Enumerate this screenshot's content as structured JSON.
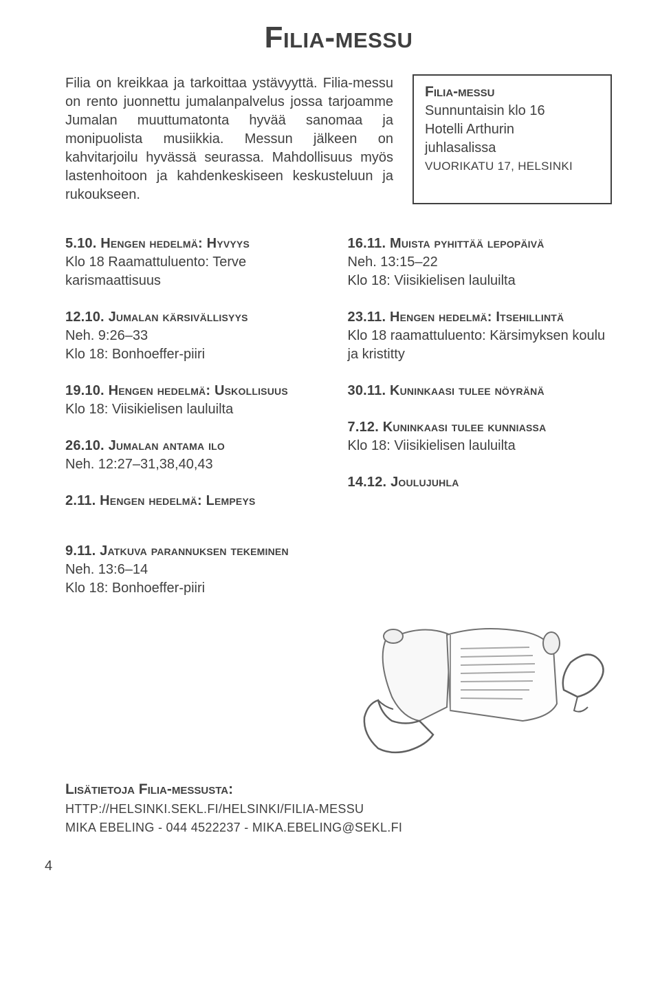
{
  "title": "Filia-messu",
  "intro": "Filia on kreikkaa ja tarkoittaa ystävyyttä. Filia-messu on rento juonnettu jumalanpalvelus jossa tarjoamme Jumalan muuttumatonta hyvää sanomaa ja monipuolista musiikkia. Messun jälkeen on kahvitarjoilu hyvässä seurassa. Mahdollisuus myös lastenhoitoon ja kahdenkeskiseen keskusteluun ja rukoukseen.",
  "infobox": {
    "title": "Filia-messu",
    "line1": "Sunnuntaisin klo 16",
    "line2": "Hotelli Arthurin",
    "line3": "juhlasalissa",
    "addr": "VUORIKATU 17, HELSINKI"
  },
  "left": [
    {
      "date": "5.10.",
      "head": "Hengen hedelmä: Hyvyys",
      "body": "Klo 18 Raamattuluento: Terve karismaattisuus"
    },
    {
      "date": "12.10.",
      "head": "Jumalan kärsivällisyys",
      "body": "Neh. 9:26–33\nKlo 18: Bonhoeffer-piiri"
    },
    {
      "date": "19.10.",
      "head": "Hengen hedelmä: Uskollisuus",
      "body": "Klo 18: Viisikielisen lauluilta"
    },
    {
      "date": "26.10.",
      "head": "Jumalan antama ilo",
      "body": "Neh. 12:27–31,38,40,43"
    },
    {
      "date": "2.11.",
      "head": "Hengen hedelmä: Lempeys",
      "body": ""
    }
  ],
  "right": [
    {
      "date": "16.11.",
      "head": "Muista pyhittää lepopäivä",
      "body": "Neh. 13:15–22\nKlo 18: Viisikielisen lauluilta"
    },
    {
      "date": "23.11.",
      "head": "Hengen hedelmä: Itsehillintä",
      "body": "Klo 18 raamattuluento: Kärsimyksen koulu ja kristitty"
    },
    {
      "date": "30.11.",
      "head": "Kuninkaasi tulee nöyränä",
      "body": ""
    },
    {
      "date": "7.12.",
      "head": "Kuninkaasi tulee kunniassa",
      "body": "Klo 18: Viisikielisen lauluilta"
    },
    {
      "date": "14.12.",
      "head": "Joulujuhla",
      "body": ""
    }
  ],
  "single": {
    "date": "9.11.",
    "head": "Jatkuva parannuksen tekeminen",
    "body": "Neh. 13:6–14\nKlo 18: Bonhoeffer-piiri"
  },
  "footer": {
    "title": "Lisätietoja Filia-messusta:",
    "line1": "HTTP://HELSINKI.SEKL.FI/HELSINKI/FILIA-MESSU",
    "line2": "MIKA EBELING - 044 4522237 - MIKA.EBELING@SEKL.FI"
  },
  "pagenum": "4",
  "colors": {
    "text": "#404040",
    "bg": "#ffffff",
    "border": "#404040",
    "illus_fill": "#f5f5f5",
    "illus_stroke": "#707070",
    "illus_lines": "#a8a8a8"
  }
}
